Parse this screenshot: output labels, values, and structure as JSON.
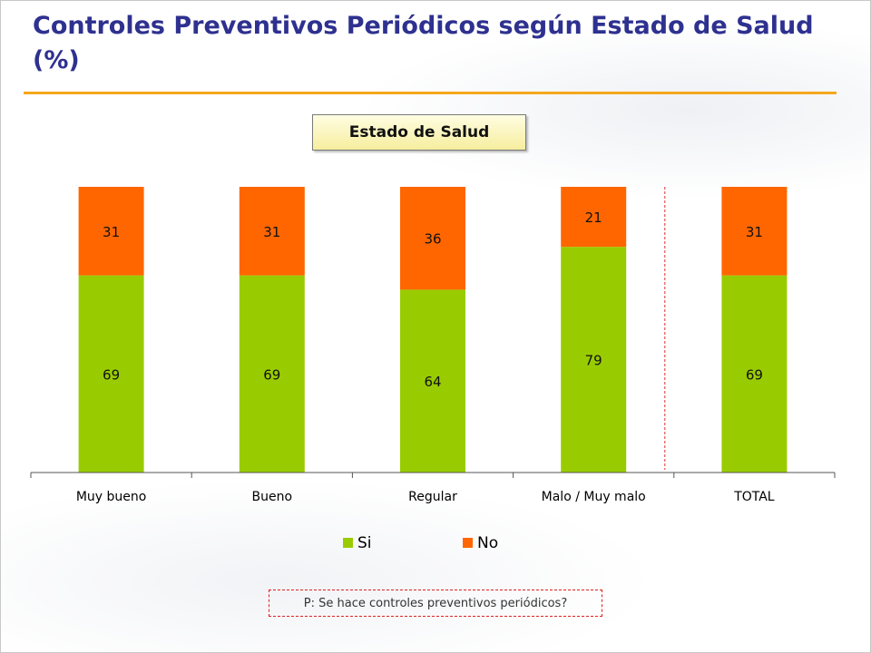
{
  "title": "Controles Preventivos Periódicos según Estado de Salud (%)",
  "group_label": "Estado de Salud",
  "note": "P: Se hace controles preventivos periódicos?",
  "chart_data": {
    "type": "bar",
    "stacked": true,
    "percent_stacked": true,
    "categories": [
      "Muy bueno",
      "Bueno",
      "Regular",
      "Malo / Muy malo",
      "TOTAL"
    ],
    "series": [
      {
        "name": "Si",
        "values": [
          69,
          69,
          64,
          79,
          69
        ],
        "color": "#99cc00"
      },
      {
        "name": "No",
        "values": [
          31,
          31,
          36,
          21,
          31
        ],
        "color": "#ff6600"
      }
    ],
    "ylim": [
      0,
      100
    ],
    "legend_position": "bottom",
    "grid": false,
    "separator_before_category": "TOTAL"
  }
}
